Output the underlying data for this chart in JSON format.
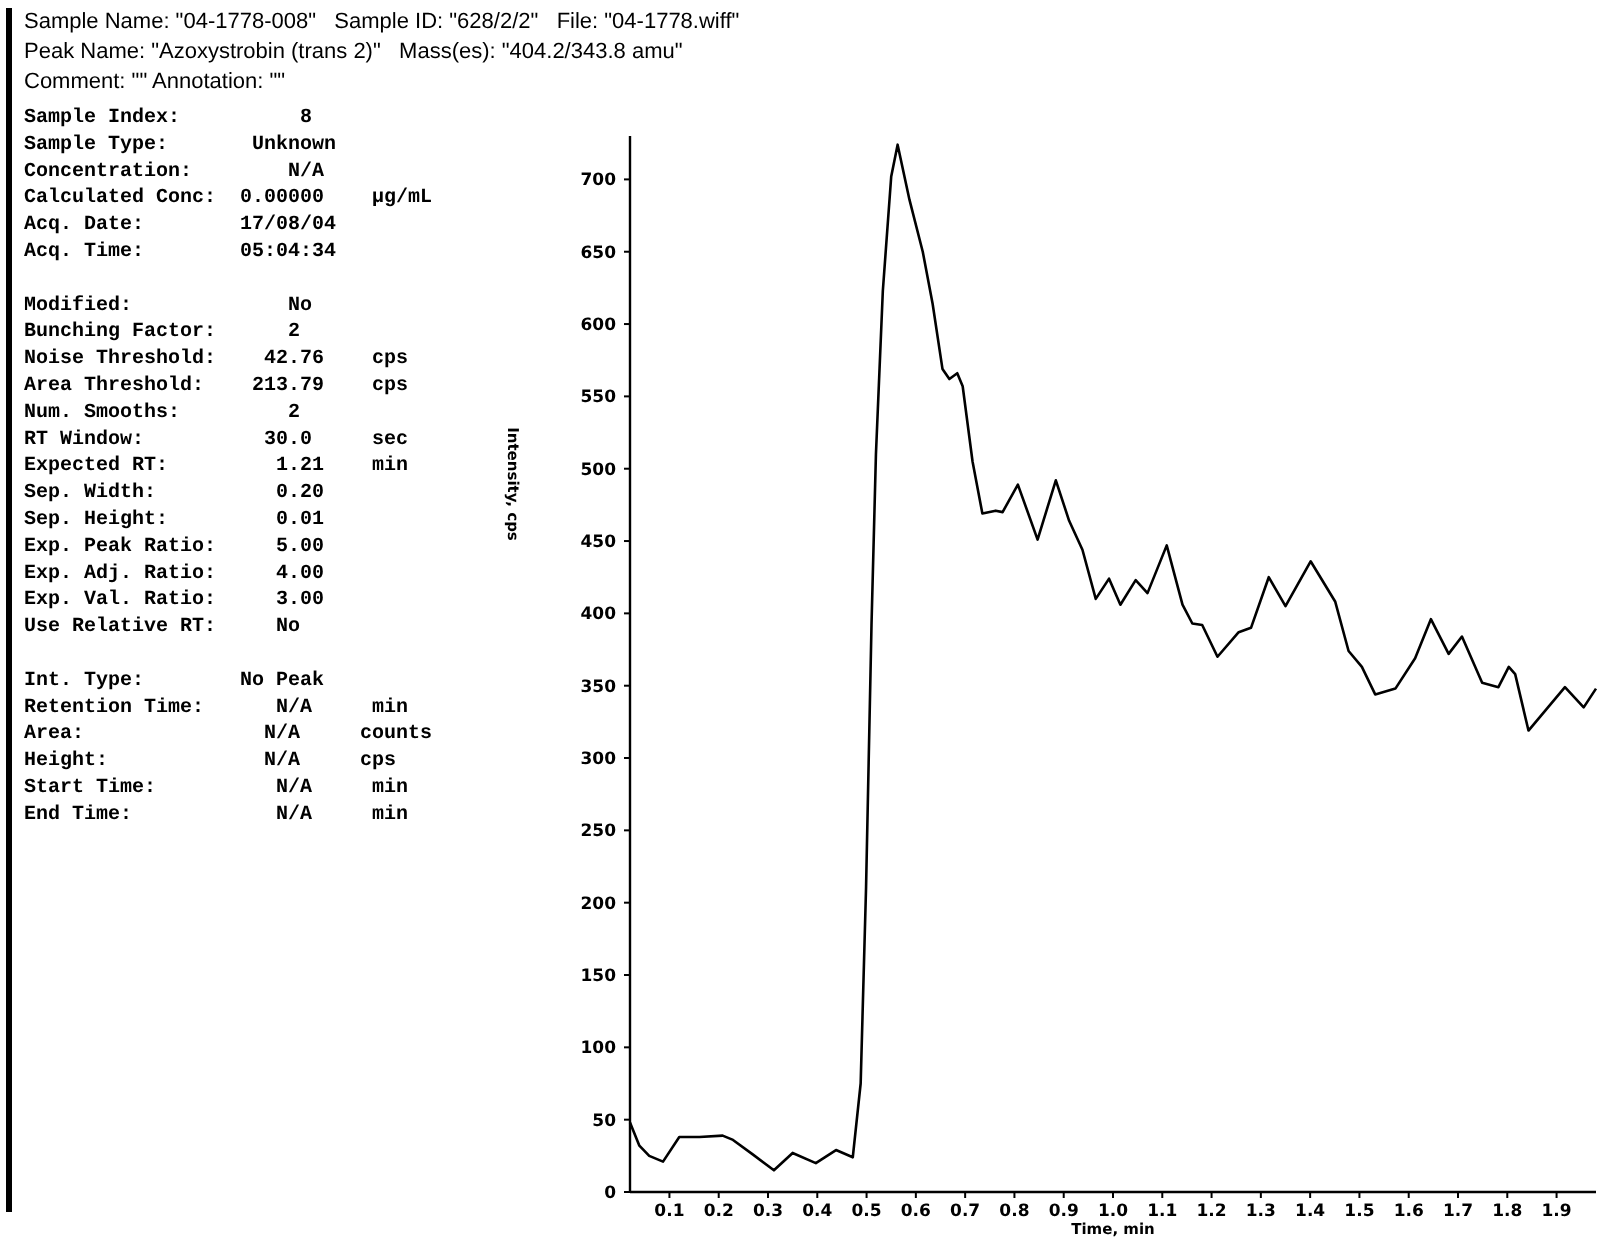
{
  "chart_data": {
    "type": "line",
    "title": "Sample Name: \"04-1778-008\"   Sample ID: \"628/2/2\"   File: \"04-1778.wiff\"",
    "subtitle": "Peak Name: \"Azoxystrobin (trans 2)\"   Mass(es): \"404.2/343.8 amu\"",
    "xlabel": "Time, min",
    "ylabel": "Intensity, cps",
    "annotations": [
      "Comment: \"\"   Annotation: \"\"",
      "Sample Index:          8",
      "Sample Type:       Unknown",
      "Concentration:        N/A",
      "Calculated Conc:  0.00000    µg/mL",
      "Acq. Date:        17/08/04",
      "Acq. Time:        05:04:34",
      "Modified:             No",
      "Bunching Factor:      2",
      "Noise Threshold:    42.76    cps",
      "Area Threshold:    213.79    cps",
      "Num. Smooths:         2",
      "RT Window:          30.0     sec",
      "Expected RT:         1.21    min",
      "Sep. Width:          0.20",
      "Sep. Height:         0.01",
      "Exp. Peak Ratio:     5.00",
      "Exp. Adj. Ratio:     4.00",
      "Exp. Val. Ratio:     3.00",
      "Use Relative RT:     No",
      "Int. Type:        No Peak",
      "Retention Time:      N/A     min",
      "Area:               N/A     counts",
      "Height:             N/A     cps",
      "Start Time:          N/A     min",
      "End Time:            N/A     min"
    ],
    "series": [
      {
        "color": "#000000",
        "x": [
          0.02,
          0.039,
          0.059,
          0.087,
          0.12,
          0.161,
          0.208,
          0.229,
          0.269,
          0.312,
          0.35,
          0.397,
          0.438,
          0.472,
          0.488,
          0.499,
          0.51,
          0.519,
          0.533,
          0.55,
          0.563,
          0.587,
          0.614,
          0.634,
          0.654,
          0.668,
          0.684,
          0.695,
          0.715,
          0.735,
          0.762,
          0.776,
          0.807,
          0.847,
          0.884,
          0.911,
          0.938,
          0.965,
          0.992,
          1.015,
          1.046,
          1.07,
          1.109,
          1.141,
          1.161,
          1.181,
          1.212,
          1.255,
          1.28,
          1.316,
          1.35,
          1.401,
          1.451,
          1.478,
          1.505,
          1.532,
          1.573,
          1.613,
          1.645,
          1.681,
          1.708,
          1.749,
          1.782,
          1.803,
          1.816,
          1.843,
          1.917,
          1.955,
          1.98
        ],
        "values": [
          48,
          32,
          25,
          21,
          38,
          38,
          39,
          36,
          26,
          15,
          27,
          20,
          29,
          24,
          75,
          211,
          392,
          510,
          623,
          702,
          724,
          686,
          650,
          614,
          569,
          562,
          566,
          557,
          505,
          469,
          471,
          470,
          489,
          451,
          492,
          464,
          444,
          410,
          424,
          406,
          423,
          414,
          447,
          406,
          393,
          392,
          370,
          387,
          390,
          425,
          405,
          436,
          408,
          374,
          363,
          344,
          348,
          369,
          396,
          372,
          384,
          352,
          349,
          363,
          358,
          319,
          349,
          335,
          348
        ]
      }
    ],
    "xlim": [
      0.02,
      1.98
    ],
    "ylim": [
      0,
      730
    ],
    "xticks": [
      0.1,
      0.2,
      0.3,
      0.4,
      0.5,
      0.6,
      0.7,
      0.8,
      0.9,
      {
        "value": 1,
        "label": "1.0"
      },
      1.1,
      1.2,
      1.3,
      1.4,
      1.5,
      1.6,
      1.7,
      1.8,
      1.9
    ],
    "yticks": [
      0,
      50,
      100,
      150,
      200,
      250,
      300,
      350,
      400,
      450,
      500,
      550,
      600,
      650,
      700
    ],
    "grid": false,
    "marker": "none",
    "line_style": "solid"
  }
}
